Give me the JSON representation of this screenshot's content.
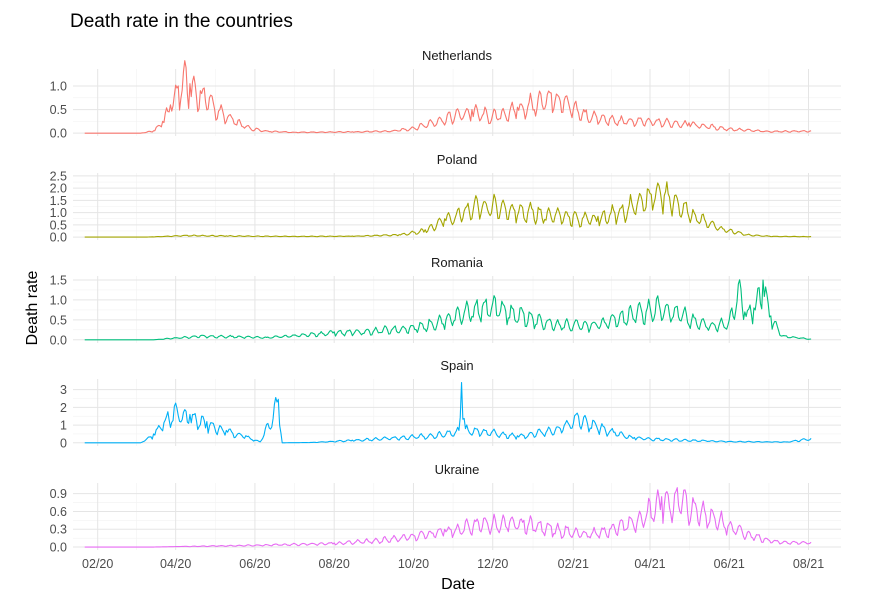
{
  "chart_data": {
    "type": "line",
    "title": "Death rate in the countries",
    "xlabel": "Date",
    "ylabel": "Death rate",
    "x_tick_labels": [
      "02/20",
      "04/20",
      "06/20",
      "08/20",
      "10/20",
      "12/20",
      "02/21",
      "04/21",
      "06/21",
      "08/21"
    ],
    "x_tick_dates": [
      "2020-02-01",
      "2020-04-01",
      "2020-06-01",
      "2020-08-01",
      "2020-10-01",
      "2020-12-01",
      "2021-02-01",
      "2021-04-01",
      "2021-06-01",
      "2021-08-01"
    ],
    "xlim": [
      "2020-01-13",
      "2021-08-26"
    ],
    "data_range": [
      "2020-01-22",
      "2021-08-03"
    ],
    "grid": true,
    "legend": "none",
    "facets": "stacked panels, free y-scales",
    "series": [
      {
        "name": "Netherlands",
        "color": "#F8766D",
        "ylim": [
          -0.06,
          1.36
        ],
        "yticks": [
          0.0,
          0.5,
          1.0
        ],
        "ytick_labels": [
          "0.0",
          "0.5",
          "1.0"
        ],
        "points": [
          [
            "2020-01-22",
            0
          ],
          [
            "2020-03-05",
            0
          ],
          [
            "2020-03-15",
            0.05
          ],
          [
            "2020-03-22",
            0.25
          ],
          [
            "2020-03-28",
            0.6
          ],
          [
            "2020-04-03",
            1.0
          ],
          [
            "2020-04-07",
            1.3
          ],
          [
            "2020-04-12",
            1.05
          ],
          [
            "2020-04-20",
            0.9
          ],
          [
            "2020-04-27",
            0.75
          ],
          [
            "2020-05-05",
            0.5
          ],
          [
            "2020-05-15",
            0.3
          ],
          [
            "2020-05-28",
            0.12
          ],
          [
            "2020-06-10",
            0.05
          ],
          [
            "2020-07-01",
            0.02
          ],
          [
            "2020-08-15",
            0.03
          ],
          [
            "2020-09-15",
            0.05
          ],
          [
            "2020-10-01",
            0.12
          ],
          [
            "2020-10-20",
            0.3
          ],
          [
            "2020-11-05",
            0.45
          ],
          [
            "2020-11-15",
            0.5
          ],
          [
            "2020-12-01",
            0.4
          ],
          [
            "2020-12-20",
            0.55
          ],
          [
            "2021-01-05",
            0.75
          ],
          [
            "2021-01-15",
            0.85
          ],
          [
            "2021-01-25",
            0.7
          ],
          [
            "2021-02-10",
            0.45
          ],
          [
            "2021-03-01",
            0.3
          ],
          [
            "2021-04-01",
            0.28
          ],
          [
            "2021-05-01",
            0.22
          ],
          [
            "2021-06-01",
            0.1
          ],
          [
            "2021-07-01",
            0.04
          ],
          [
            "2021-08-03",
            0.05
          ]
        ]
      },
      {
        "name": "Poland",
        "color": "#A3A500",
        "ylim": [
          -0.12,
          2.62
        ],
        "yticks": [
          0.0,
          0.5,
          1.0,
          1.5,
          2.0,
          2.5
        ],
        "ytick_labels": [
          "0.0",
          "0.5",
          "1.0",
          "1.5",
          "2.0",
          "2.5"
        ],
        "points": [
          [
            "2020-01-22",
            0
          ],
          [
            "2020-03-10",
            0
          ],
          [
            "2020-04-10",
            0.07
          ],
          [
            "2020-05-10",
            0.05
          ],
          [
            "2020-07-01",
            0.03
          ],
          [
            "2020-08-15",
            0.04
          ],
          [
            "2020-09-20",
            0.1
          ],
          [
            "2020-10-10",
            0.3
          ],
          [
            "2020-10-25",
            0.75
          ],
          [
            "2020-11-10",
            1.2
          ],
          [
            "2020-11-25",
            1.45
          ],
          [
            "2020-12-10",
            1.35
          ],
          [
            "2021-01-01",
            1.1
          ],
          [
            "2021-02-01",
            0.9
          ],
          [
            "2021-02-20",
            0.85
          ],
          [
            "2021-03-10",
            1.2
          ],
          [
            "2021-03-25",
            1.7
          ],
          [
            "2021-04-08",
            2.1
          ],
          [
            "2021-04-20",
            1.7
          ],
          [
            "2021-05-05",
            1.0
          ],
          [
            "2021-05-25",
            0.4
          ],
          [
            "2021-06-15",
            0.1
          ],
          [
            "2021-07-05",
            0.03
          ],
          [
            "2021-08-03",
            0.02
          ]
        ]
      },
      {
        "name": "Romania",
        "color": "#00BF7D",
        "ylim": [
          -0.08,
          1.6
        ],
        "yticks": [
          0.0,
          0.5,
          1.0,
          1.5
        ],
        "ytick_labels": [
          "0.0",
          "0.5",
          "1.0",
          "1.5"
        ],
        "points": [
          [
            "2020-01-22",
            0
          ],
          [
            "2020-03-15",
            0
          ],
          [
            "2020-04-01",
            0.05
          ],
          [
            "2020-04-20",
            0.1
          ],
          [
            "2020-05-15",
            0.09
          ],
          [
            "2020-06-10",
            0.06
          ],
          [
            "2020-07-01",
            0.12
          ],
          [
            "2020-08-01",
            0.2
          ],
          [
            "2020-09-01",
            0.25
          ],
          [
            "2020-10-01",
            0.35
          ],
          [
            "2020-10-20",
            0.5
          ],
          [
            "2020-11-10",
            0.8
          ],
          [
            "2020-11-25",
            0.95
          ],
          [
            "2020-12-10",
            0.85
          ],
          [
            "2020-12-25",
            0.65
          ],
          [
            "2021-01-15",
            0.45
          ],
          [
            "2021-02-15",
            0.4
          ],
          [
            "2021-03-05",
            0.55
          ],
          [
            "2021-03-25",
            0.8
          ],
          [
            "2021-04-08",
            0.9
          ],
          [
            "2021-04-20",
            0.8
          ],
          [
            "2021-05-05",
            0.55
          ],
          [
            "2021-05-20",
            0.4
          ],
          [
            "2021-06-01",
            0.5
          ],
          [
            "2021-06-08",
            1.4
          ],
          [
            "2021-06-13",
            0.7
          ],
          [
            "2021-06-20",
            0.8
          ],
          [
            "2021-06-27",
            1.5
          ],
          [
            "2021-07-03",
            0.6
          ],
          [
            "2021-07-12",
            0.1
          ],
          [
            "2021-08-03",
            0.02
          ]
        ]
      },
      {
        "name": "Spain",
        "color": "#00B0F6",
        "ylim": [
          -0.18,
          3.6
        ],
        "yticks": [
          0,
          1,
          2,
          3
        ],
        "ytick_labels": [
          "0",
          "1",
          "2",
          "3"
        ],
        "points": [
          [
            "2020-01-22",
            0
          ],
          [
            "2020-03-05",
            0
          ],
          [
            "2020-03-15",
            0.5
          ],
          [
            "2020-03-25",
            1.5
          ],
          [
            "2020-04-02",
            1.95
          ],
          [
            "2020-04-12",
            1.6
          ],
          [
            "2020-04-25",
            1.2
          ],
          [
            "2020-05-10",
            0.7
          ],
          [
            "2020-05-25",
            0.4
          ],
          [
            "2020-06-05",
            0.05
          ],
          [
            "2020-06-19",
            2.45
          ],
          [
            "2020-06-22",
            0.0
          ],
          [
            "2020-07-15",
            0.02
          ],
          [
            "2020-08-15",
            0.15
          ],
          [
            "2020-09-15",
            0.3
          ],
          [
            "2020-10-15",
            0.45
          ],
          [
            "2020-11-05",
            0.7
          ],
          [
            "2020-11-07",
            3.4
          ],
          [
            "2020-11-10",
            0.8
          ],
          [
            "2020-11-25",
            0.7
          ],
          [
            "2020-12-20",
            0.4
          ],
          [
            "2021-01-20",
            0.9
          ],
          [
            "2021-02-05",
            1.5
          ],
          [
            "2021-02-18",
            1.1
          ],
          [
            "2021-03-05",
            0.6
          ],
          [
            "2021-03-20",
            0.3
          ],
          [
            "2021-04-15",
            0.2
          ],
          [
            "2021-06-01",
            0.08
          ],
          [
            "2021-07-15",
            0.05
          ],
          [
            "2021-08-03",
            0.25
          ]
        ]
      },
      {
        "name": "Ukraine",
        "color": "#E76BF3",
        "ylim": [
          -0.05,
          1.08
        ],
        "yticks": [
          0.0,
          0.3,
          0.6,
          0.9
        ],
        "ytick_labels": [
          "0.0",
          "0.3",
          "0.6",
          "0.9"
        ],
        "points": [
          [
            "2020-01-22",
            0
          ],
          [
            "2020-03-15",
            0
          ],
          [
            "2020-05-01",
            0.02
          ],
          [
            "2020-06-15",
            0.04
          ],
          [
            "2020-08-01",
            0.07
          ],
          [
            "2020-09-01",
            0.12
          ],
          [
            "2020-10-01",
            0.2
          ],
          [
            "2020-10-25",
            0.3
          ],
          [
            "2020-11-20",
            0.42
          ],
          [
            "2020-12-10",
            0.48
          ],
          [
            "2020-12-25",
            0.45
          ],
          [
            "2021-01-15",
            0.35
          ],
          [
            "2021-02-10",
            0.25
          ],
          [
            "2021-03-01",
            0.3
          ],
          [
            "2021-03-25",
            0.55
          ],
          [
            "2021-04-10",
            0.85
          ],
          [
            "2021-04-20",
            0.9
          ],
          [
            "2021-05-05",
            0.75
          ],
          [
            "2021-05-25",
            0.5
          ],
          [
            "2021-06-15",
            0.25
          ],
          [
            "2021-07-05",
            0.1
          ],
          [
            "2021-08-03",
            0.08
          ]
        ]
      }
    ]
  }
}
